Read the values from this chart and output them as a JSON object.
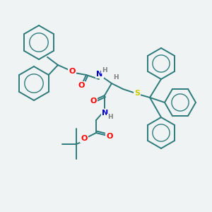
{
  "background_color": "#eff3f4",
  "atom_colors": {
    "O": "#ff0000",
    "N": "#0000cd",
    "S": "#cccc00",
    "C": "#2d7a7a",
    "H": "#808080"
  },
  "bond_lw": 1.4,
  "figsize": [
    3.0,
    3.0
  ],
  "dpi": 100
}
